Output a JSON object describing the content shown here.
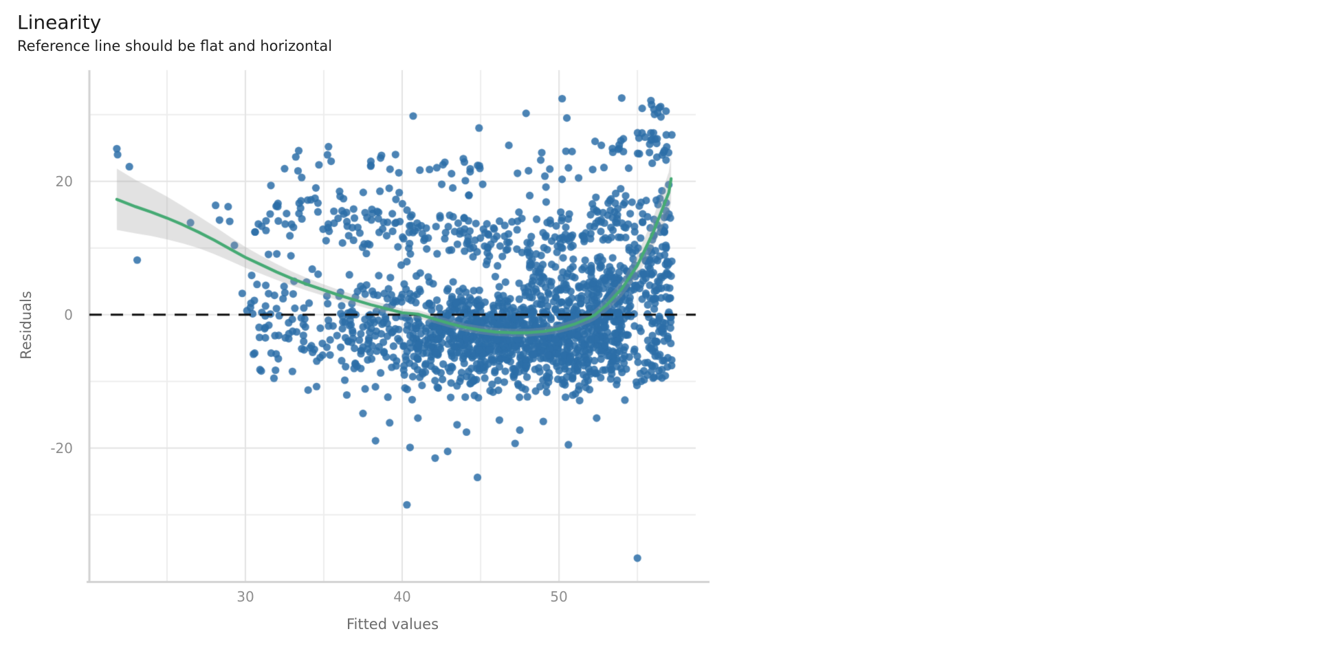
{
  "chart_data": {
    "type": "scatter",
    "title": "Linearity",
    "subtitle": "Reference line should be flat and horizontal",
    "xlabel": "Fitted values",
    "ylabel": "Residuals",
    "xlim": [
      20.05,
      58.72
    ],
    "ylim": [
      -39.92,
      36.68
    ],
    "x_major_ticks": [
      30,
      40,
      50
    ],
    "x_minor_ticks": [
      25,
      35,
      45,
      55
    ],
    "y_major_ticks": [
      20,
      0,
      -20
    ],
    "y_minor_ticks": [
      30,
      10,
      -10,
      -30
    ],
    "x_tick_labels": [
      "30",
      "40",
      "50"
    ],
    "y_tick_labels": [
      "20",
      "0",
      "-20"
    ],
    "grid": true,
    "legend_position": "none",
    "reference_line": {
      "y": 0,
      "style": "dashed",
      "color": "#0c0c0c"
    },
    "colors": {
      "point": "#2d6ea8",
      "point_alpha": 0.85,
      "smoother_line": "#46aa74",
      "ci_band": "rgba(160,160,160,0.30)",
      "grid_major": "#e3e3e3",
      "grid_minor": "#ededed",
      "axis_line": "#d2d2d2",
      "tick_text": "#8e8e8e",
      "axis_title_text": "#6b6b6b",
      "title_text": "#1a1a1a"
    },
    "smoother": {
      "x": [
        21.8,
        23,
        24,
        25,
        26,
        27,
        28,
        29,
        30,
        31,
        32,
        33,
        34,
        35,
        36,
        37,
        38,
        39,
        40,
        41,
        42,
        43,
        44,
        45,
        46,
        47,
        48,
        49,
        50,
        51,
        52,
        52.3,
        53,
        54,
        55,
        56,
        57,
        57.15
      ],
      "y": [
        17.3,
        16.2,
        15.4,
        14.5,
        13.5,
        12.4,
        11.2,
        9.9,
        8.6,
        7.5,
        6.4,
        5.4,
        4.5,
        3.7,
        2.9,
        2.2,
        1.5,
        0.9,
        0.3,
        0.1,
        -0.6,
        -1.3,
        -1.9,
        -2.3,
        -2.6,
        -2.7,
        -2.7,
        -2.5,
        -2.1,
        -1.4,
        -0.4,
        0.0,
        1.4,
        3.9,
        7.4,
        12.3,
        18.3,
        20.4
      ],
      "band_halfwidth": [
        4.6,
        4.0,
        3.6,
        3.2,
        2.8,
        2.4,
        2.1,
        1.8,
        1.55,
        1.35,
        1.2,
        1.05,
        0.95,
        0.85,
        0.8,
        0.75,
        0.7,
        0.65,
        0.6,
        0.6,
        0.6,
        0.6,
        0.6,
        0.6,
        0.6,
        0.6,
        0.6,
        0.6,
        0.65,
        0.7,
        0.75,
        0.8,
        0.95,
        1.2,
        1.6,
        2.2,
        3.1,
        3.6
      ]
    },
    "points_notable": [
      [
        21.8,
        24.9
      ],
      [
        21.85,
        24.0
      ],
      [
        22.6,
        22.2
      ],
      [
        23.1,
        8.2
      ],
      [
        26.5,
        13.8
      ],
      [
        28.1,
        16.4
      ],
      [
        28.35,
        14.2
      ],
      [
        28.9,
        16.2
      ],
      [
        29.0,
        14.0
      ],
      [
        29.3,
        10.4
      ],
      [
        29.8,
        3.2
      ],
      [
        30.1,
        0.6
      ],
      [
        30.4,
        5.9
      ],
      [
        30.9,
        -3.4
      ],
      [
        31.3,
        4.4
      ],
      [
        31.6,
        0.1
      ],
      [
        32.1,
        -6.6
      ],
      [
        32.4,
        2.4
      ],
      [
        32.5,
        21.9
      ],
      [
        33.0,
        -8.5
      ],
      [
        33.4,
        24.6
      ],
      [
        34.0,
        -11.3
      ],
      [
        34.4,
        -5.2
      ],
      [
        35.2,
        2.8
      ],
      [
        35.3,
        25.2
      ],
      [
        38.0,
        23.0
      ],
      [
        40.7,
        29.8
      ],
      [
        42.6,
        22.5
      ],
      [
        43.9,
        23.4
      ],
      [
        44.9,
        28.0
      ],
      [
        46.8,
        25.4
      ],
      [
        47.9,
        30.2
      ],
      [
        48.9,
        24.3
      ],
      [
        50.2,
        32.4
      ],
      [
        50.5,
        29.5
      ],
      [
        52.3,
        26.0
      ],
      [
        54.0,
        32.5
      ],
      [
        55.9,
        31.5
      ],
      [
        56.3,
        30.3
      ],
      [
        37.5,
        -14.8
      ],
      [
        38.3,
        -18.9
      ],
      [
        39.2,
        -16.2
      ],
      [
        40.3,
        -28.5
      ],
      [
        40.5,
        -19.9
      ],
      [
        41.0,
        -15.5
      ],
      [
        42.1,
        -21.5
      ],
      [
        42.9,
        -20.5
      ],
      [
        43.5,
        -16.5
      ],
      [
        44.1,
        -17.6
      ],
      [
        44.8,
        -24.4
      ],
      [
        46.2,
        -15.8
      ],
      [
        47.2,
        -19.3
      ],
      [
        47.5,
        -17.3
      ],
      [
        49.0,
        -16.0
      ],
      [
        50.6,
        -19.5
      ],
      [
        52.4,
        -15.5
      ],
      [
        54.2,
        -12.8
      ],
      [
        55.0,
        -36.5
      ],
      [
        56.0,
        -9.5
      ],
      [
        56.6,
        -2.0
      ],
      [
        57.1,
        2.5
      ],
      [
        56.9,
        8.0
      ],
      [
        57.1,
        14.5
      ],
      [
        57.0,
        19.5
      ]
    ],
    "point_cloud": {
      "seed": 42,
      "clusters": [
        {
          "n": 70,
          "x": [
            30.3,
            36
          ],
          "y": [
            -12,
            8
          ]
        },
        {
          "n": 40,
          "x": [
            30.5,
            36
          ],
          "y": [
            8,
            20
          ]
        },
        {
          "n": 6,
          "x": [
            31,
            36
          ],
          "y": [
            20,
            25.5
          ]
        },
        {
          "n": 120,
          "x": [
            36,
            40
          ],
          "y": [
            -13,
            8
          ]
        },
        {
          "n": 45,
          "x": [
            36,
            40
          ],
          "y": [
            8,
            20
          ]
        },
        {
          "n": 7,
          "x": [
            36.5,
            40
          ],
          "y": [
            20,
            26
          ]
        },
        {
          "n": 190,
          "x": [
            40,
            44
          ],
          "y": [
            -13.5,
            7
          ]
        },
        {
          "n": 45,
          "x": [
            40,
            44
          ],
          "y": [
            7,
            18
          ]
        },
        {
          "n": 8,
          "x": [
            40,
            44
          ],
          "y": [
            18,
            25
          ]
        },
        {
          "n": 240,
          "x": [
            44,
            48
          ],
          "y": [
            -13.5,
            6
          ]
        },
        {
          "n": 50,
          "x": [
            44,
            48
          ],
          "y": [
            6,
            16
          ]
        },
        {
          "n": 10,
          "x": [
            44,
            48
          ],
          "y": [
            16,
            24
          ]
        },
        {
          "n": 260,
          "x": [
            48,
            52
          ],
          "y": [
            -13.5,
            6
          ]
        },
        {
          "n": 55,
          "x": [
            48,
            52
          ],
          "y": [
            6,
            16
          ]
        },
        {
          "n": 12,
          "x": [
            48,
            52
          ],
          "y": [
            16,
            26
          ]
        },
        {
          "n": 300,
          "x": [
            42,
            54
          ],
          "y": [
            -9,
            3
          ]
        },
        {
          "n": 90,
          "x": [
            48,
            54.5
          ],
          "y": [
            2,
            9
          ]
        },
        {
          "n": 150,
          "x": [
            52,
            54.5
          ],
          "y": [
            -12,
            8
          ]
        },
        {
          "n": 50,
          "x": [
            52,
            54.5
          ],
          "y": [
            8,
            20
          ]
        },
        {
          "n": 12,
          "x": [
            52,
            54.5
          ],
          "y": [
            20,
            28
          ]
        },
        {
          "n": 160,
          "x": [
            54.5,
            57.2
          ],
          "y": [
            -8,
            22
          ]
        },
        {
          "n": 35,
          "x": [
            54.8,
            57.2
          ],
          "y": [
            -12,
            -2
          ]
        },
        {
          "n": 25,
          "x": [
            55,
            57.2
          ],
          "y": [
            22,
            29
          ]
        },
        {
          "n": 8,
          "x": [
            55.2,
            57
          ],
          "y": [
            29,
            32.5
          ]
        }
      ]
    }
  }
}
